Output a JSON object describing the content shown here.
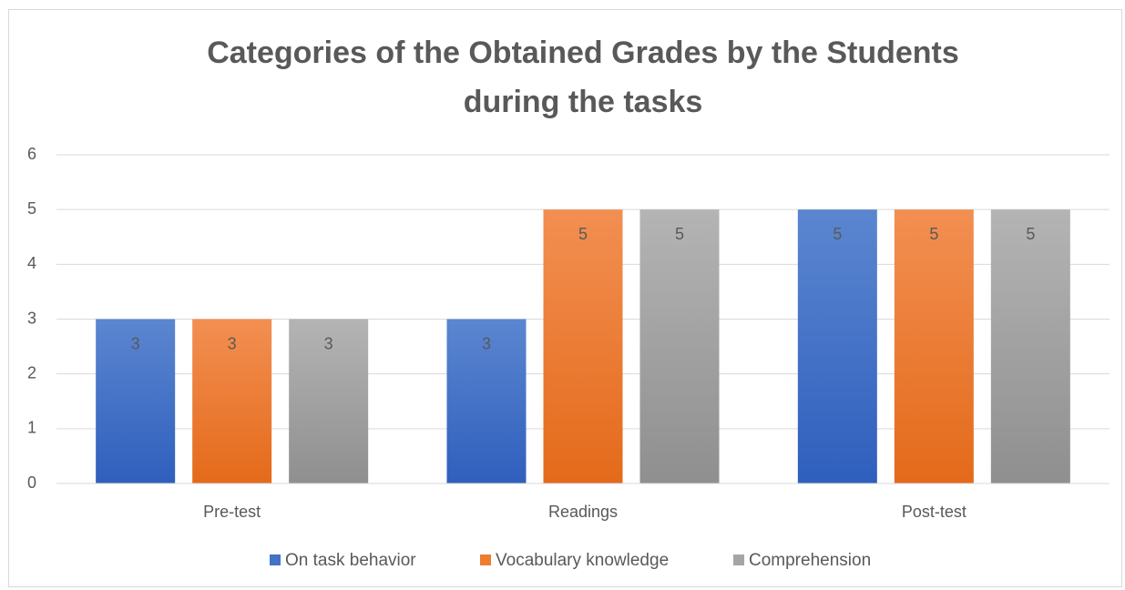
{
  "chart_data": {
    "type": "bar",
    "title": "Categories of the Obtained Grades by the Students during the tasks",
    "categories": [
      "Pre-test",
      "Readings",
      "Post-test"
    ],
    "series": [
      {
        "name": "On task behavior",
        "color": "#4472c4",
        "values": [
          3,
          3,
          5
        ]
      },
      {
        "name": "Vocabulary knowledge",
        "color": "#ed7d31",
        "values": [
          3,
          5,
          5
        ]
      },
      {
        "name": "Comprehension",
        "color": "#a5a5a5",
        "values": [
          3,
          5,
          5
        ]
      }
    ],
    "ylim": [
      0,
      6
    ],
    "yticks": [
      0,
      1,
      2,
      3,
      4,
      5,
      6
    ],
    "grid": true,
    "legend": "bottom"
  }
}
